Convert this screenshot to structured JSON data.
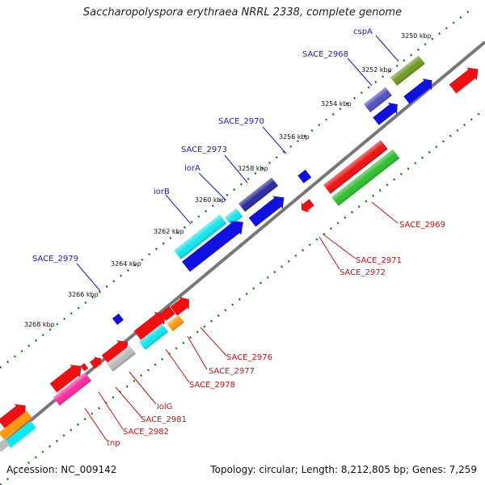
{
  "title": "Saccharopolyspora erythraea NRRL 2338, complete genome",
  "footer": {
    "accession": "Accession: NC_009142",
    "summary": "Topology: circular; Length: 8,212,805 bp; Genes: 7,259"
  },
  "ticks": [
    "3250 kbp",
    "3252 kbp",
    "3254 kbp",
    "3256 kbp",
    "3258 kbp",
    "3260 kbp",
    "3262 kbp",
    "3264 kbp",
    "3266 kbp",
    "3268 kbp"
  ],
  "forward_labels": [
    "cspA",
    "SACE_2968",
    "SACE_2970",
    "SACE_2973",
    "iorA",
    "iorB",
    "SACE_2979"
  ],
  "reverse_labels": [
    "SACE_2969",
    "SACE_2971",
    "SACE_2972",
    "SACE_2976",
    "SACE_2977",
    "SACE_2978",
    "iolG",
    "SACE_2981",
    "SACE_2982",
    "tnp"
  ],
  "colors": {
    "blue": "#1010e0",
    "red": "#ee1010",
    "green": "#2ec02e",
    "olive": "#6e9a22",
    "cyan": "#10e8ee",
    "orange": "#ff9a10",
    "pink": "#ff2aa0",
    "grey": "#bbbbbb",
    "slate": "#5050c0",
    "backbone": "#777777",
    "tick": "#1a7a1a"
  }
}
